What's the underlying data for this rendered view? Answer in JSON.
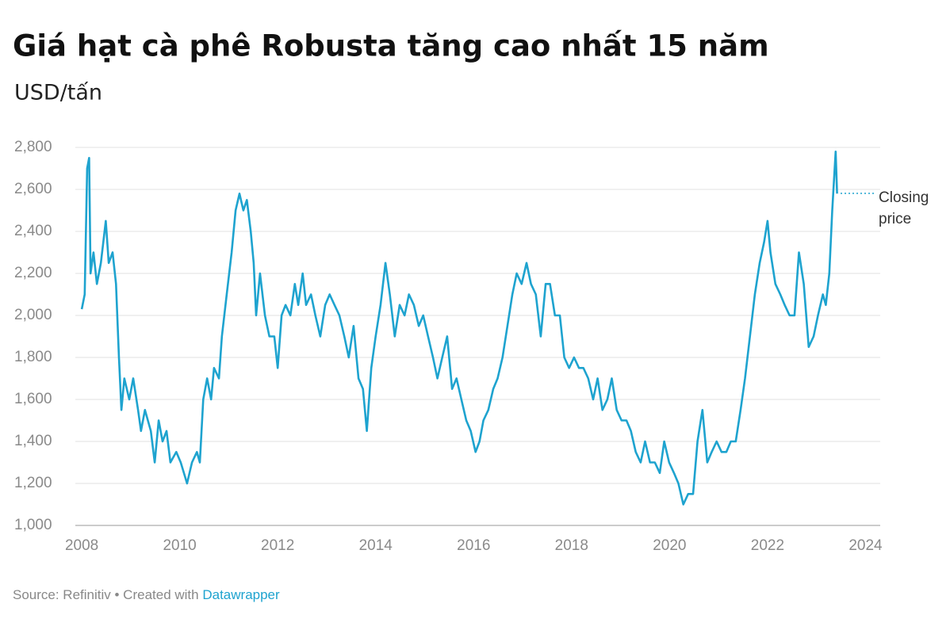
{
  "chart_data": {
    "type": "line",
    "title": "Giá hạt cà phê Robusta tăng cao nhất 15 năm",
    "subtitle": "USD/tấn",
    "annotation": "Closing price",
    "source": "Source: Refinitiv • Created with",
    "credit": "Datawrapper",
    "color": "#1ea3cf",
    "grid": true,
    "xlim": [
      2007.95,
      2024.3
    ],
    "xticks": [
      2008,
      2010,
      2012,
      2014,
      2016,
      2018,
      2020,
      2022,
      2024
    ],
    "ylim": [
      1000,
      2800
    ],
    "yticks": [
      {
        "value": 1000,
        "label": "1,000"
      },
      {
        "value": 1200,
        "label": "1,200"
      },
      {
        "value": 1400,
        "label": "1,400"
      },
      {
        "value": 1600,
        "label": "1,600"
      },
      {
        "value": 1800,
        "label": "1,800"
      },
      {
        "value": 2000,
        "label": "2,000"
      },
      {
        "value": 2200,
        "label": "2,200"
      },
      {
        "value": 2400,
        "label": "2,400"
      },
      {
        "value": 2600,
        "label": "2,600"
      },
      {
        "value": 2800,
        "label": "2,800"
      }
    ],
    "x": [
      2008.0,
      2008.06,
      2008.11,
      2008.15,
      2008.18,
      2008.24,
      2008.31,
      2008.39,
      2008.49,
      2008.55,
      2008.63,
      2008.7,
      2008.76,
      2008.81,
      2008.87,
      2008.97,
      2009.05,
      2009.15,
      2009.21,
      2009.29,
      2009.41,
      2009.49,
      2009.57,
      2009.65,
      2009.73,
      2009.81,
      2009.93,
      2010.02,
      2010.15,
      2010.25,
      2010.35,
      2010.41,
      2010.48,
      2010.56,
      2010.64,
      2010.7,
      2010.8,
      2010.86,
      2010.96,
      2011.06,
      2011.14,
      2011.22,
      2011.3,
      2011.37,
      2011.45,
      2011.51,
      2011.56,
      2011.64,
      2011.74,
      2011.83,
      2011.93,
      2012.0,
      2012.08,
      2012.16,
      2012.26,
      2012.35,
      2012.42,
      2012.51,
      2012.58,
      2012.68,
      2012.77,
      2012.87,
      2012.97,
      2013.06,
      2013.16,
      2013.26,
      2013.36,
      2013.45,
      2013.55,
      2013.65,
      2013.74,
      2013.82,
      2013.91,
      2014.0,
      2014.1,
      2014.2,
      2014.29,
      2014.39,
      2014.49,
      2014.59,
      2014.68,
      2014.78,
      2014.88,
      2014.97,
      2015.07,
      2015.17,
      2015.26,
      2015.36,
      2015.46,
      2015.56,
      2015.65,
      2015.75,
      2015.85,
      2015.94,
      2016.04,
      2016.12,
      2016.2,
      2016.3,
      2016.4,
      2016.49,
      2016.59,
      2016.69,
      2016.79,
      2016.88,
      2016.98,
      2017.08,
      2017.17,
      2017.27,
      2017.37,
      2017.47,
      2017.56,
      2017.66,
      2017.76,
      2017.85,
      2017.95,
      2018.05,
      2018.15,
      2018.24,
      2018.34,
      2018.44,
      2018.53,
      2018.63,
      2018.73,
      2018.82,
      2018.92,
      2019.02,
      2019.12,
      2019.21,
      2019.31,
      2019.41,
      2019.5,
      2019.6,
      2019.7,
      2019.8,
      2019.89,
      2019.99,
      2020.09,
      2020.18,
      2020.28,
      2020.38,
      2020.48,
      2020.57,
      2020.67,
      2020.77,
      2020.86,
      2020.96,
      2021.06,
      2021.16,
      2021.25,
      2021.35,
      2021.45,
      2021.54,
      2021.64,
      2021.74,
      2021.84,
      2021.93,
      2022.0,
      2022.06,
      2022.16,
      2022.26,
      2022.35,
      2022.45,
      2022.55,
      2022.64,
      2022.74,
      2022.84,
      2022.94,
      2023.03,
      2023.13,
      2023.19,
      2023.26,
      2023.32,
      2023.39,
      2023.42
    ],
    "values": [
      2030,
      2100,
      2700,
      2750,
      2200,
      2300,
      2150,
      2250,
      2450,
      2250,
      2300,
      2150,
      1800,
      1550,
      1700,
      1600,
      1700,
      1550,
      1450,
      1550,
      1450,
      1300,
      1500,
      1400,
      1450,
      1300,
      1350,
      1300,
      1200,
      1300,
      1350,
      1300,
      1600,
      1700,
      1600,
      1750,
      1700,
      1900,
      2100,
      2300,
      2500,
      2580,
      2500,
      2550,
      2400,
      2250,
      2000,
      2200,
      2000,
      1900,
      1900,
      1750,
      2000,
      2050,
      2000,
      2150,
      2050,
      2200,
      2050,
      2100,
      2000,
      1900,
      2050,
      2100,
      2050,
      2000,
      1900,
      1800,
      1950,
      1700,
      1650,
      1450,
      1750,
      1900,
      2050,
      2250,
      2100,
      1900,
      2050,
      2000,
      2100,
      2050,
      1950,
      2000,
      1900,
      1800,
      1700,
      1800,
      1900,
      1650,
      1700,
      1600,
      1500,
      1450,
      1350,
      1400,
      1500,
      1550,
      1650,
      1700,
      1800,
      1950,
      2100,
      2200,
      2150,
      2250,
      2150,
      2100,
      1900,
      2150,
      2150,
      2000,
      2000,
      1800,
      1750,
      1800,
      1750,
      1750,
      1700,
      1600,
      1700,
      1550,
      1600,
      1700,
      1550,
      1500,
      1500,
      1450,
      1350,
      1300,
      1400,
      1300,
      1300,
      1250,
      1400,
      1300,
      1250,
      1200,
      1100,
      1150,
      1150,
      1400,
      1550,
      1300,
      1350,
      1400,
      1350,
      1350,
      1400,
      1400,
      1550,
      1700,
      1900,
      2100,
      2250,
      2350,
      2450,
      2300,
      2150,
      2100,
      2050,
      2000,
      2000,
      2300,
      2150,
      1850,
      1900,
      2000,
      2100,
      2050,
      2200,
      2500,
      2780,
      2580
    ]
  }
}
